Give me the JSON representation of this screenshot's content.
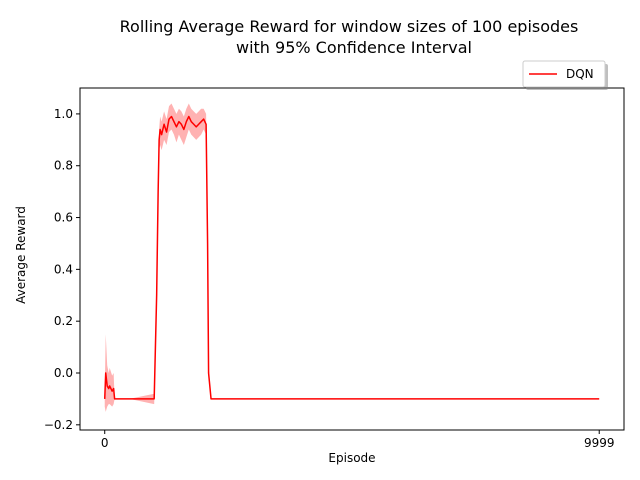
{
  "chart_data": {
    "type": "line",
    "title_line1": "Rolling Average Reward for window sizes of 100 episodes",
    "title_line2": "with 95% Confidence Interval",
    "xlabel": "Episode",
    "ylabel": "Average Reward",
    "x_ticks": [
      0,
      9999
    ],
    "y_ticks": [
      -0.2,
      0.0,
      0.2,
      0.4,
      0.6,
      0.8,
      1.0
    ],
    "y_tick_labels": [
      "−0.2",
      "0.0",
      "0.2",
      "0.4",
      "0.6",
      "0.8",
      "1.0"
    ],
    "xlim": [
      -500,
      10500
    ],
    "ylim": [
      -0.22,
      1.1
    ],
    "grid": false,
    "legend_placement": "top-right (outside plot)",
    "series": [
      {
        "name": "DQN",
        "color": "#ff0000",
        "ci_color": "#ff0000",
        "x": [
          0,
          20,
          50,
          80,
          100,
          150,
          180,
          200,
          250,
          500,
          1000,
          1050,
          1080,
          1100,
          1120,
          1150,
          1200,
          1250,
          1300,
          1350,
          1400,
          1450,
          1500,
          1550,
          1600,
          1650,
          1700,
          1750,
          1800,
          1850,
          1900,
          1950,
          2000,
          2050,
          2080,
          2100,
          2150,
          2200,
          9999
        ],
        "y": [
          -0.1,
          0.0,
          -0.05,
          -0.06,
          -0.05,
          -0.07,
          -0.06,
          -0.1,
          -0.1,
          -0.1,
          -0.1,
          0.3,
          0.7,
          0.9,
          0.94,
          0.92,
          0.96,
          0.93,
          0.98,
          0.99,
          0.97,
          0.95,
          0.97,
          0.96,
          0.94,
          0.97,
          0.99,
          0.97,
          0.96,
          0.95,
          0.96,
          0.97,
          0.98,
          0.96,
          0.5,
          0.0,
          -0.1,
          -0.1,
          -0.1
        ],
        "lower": [
          -0.13,
          -0.15,
          -0.13,
          -0.12,
          -0.12,
          -0.13,
          -0.12,
          -0.1,
          -0.1,
          -0.1,
          -0.12,
          0.25,
          0.65,
          0.86,
          0.88,
          0.86,
          0.9,
          0.88,
          0.93,
          0.94,
          0.92,
          0.89,
          0.92,
          0.9,
          0.88,
          0.91,
          0.94,
          0.92,
          0.91,
          0.9,
          0.91,
          0.92,
          0.94,
          0.92,
          0.45,
          -0.02,
          -0.1,
          -0.1,
          -0.1
        ],
        "upper": [
          -0.07,
          0.15,
          0.03,
          0.0,
          0.02,
          -0.01,
          0.0,
          -0.1,
          -0.1,
          -0.1,
          -0.08,
          0.35,
          0.75,
          0.94,
          0.99,
          0.97,
          1.01,
          0.98,
          1.03,
          1.04,
          1.02,
          1.0,
          1.02,
          1.01,
          0.99,
          1.02,
          1.04,
          1.02,
          1.01,
          1.0,
          1.01,
          1.02,
          1.02,
          1.0,
          0.55,
          0.02,
          -0.1,
          -0.1,
          -0.1
        ]
      }
    ]
  }
}
